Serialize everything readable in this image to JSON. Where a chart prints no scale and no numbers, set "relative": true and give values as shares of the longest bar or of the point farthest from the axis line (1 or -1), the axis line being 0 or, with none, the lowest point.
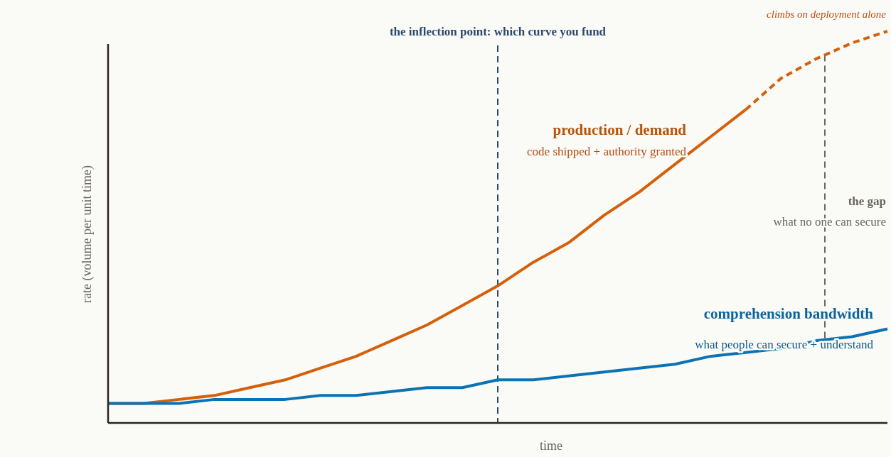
{
  "chart_data": {
    "type": "line",
    "relative": true,
    "xlabel": "time",
    "ylabel": "rate (volume per unit time)",
    "categories": [
      null,
      null,
      null,
      null,
      null,
      null,
      null,
      null,
      null,
      null,
      null,
      null,
      null,
      null,
      null,
      null,
      null,
      null,
      null,
      null,
      null,
      null,
      null
    ],
    "marker": "none",
    "series": [
      {
        "name": "production / demand",
        "color": "#d4600c",
        "line_style": "solid",
        "values": [
          0.05,
          0.05,
          0.06,
          0.07,
          0.09,
          0.11,
          0.14,
          0.17,
          0.21,
          0.25,
          0.3,
          0.35,
          0.41,
          0.46,
          0.53,
          0.59,
          0.66,
          0.73,
          0.8,
          null,
          null,
          null,
          null
        ]
      },
      {
        "color": "#d4600c",
        "line_style": "dashed",
        "values": [
          null,
          null,
          null,
          null,
          null,
          null,
          null,
          null,
          null,
          null,
          null,
          null,
          null,
          null,
          null,
          null,
          null,
          null,
          0.8,
          0.88,
          0.93,
          0.97,
          1
        ]
      },
      {
        "name": "comprehension bandwidth",
        "color": "#0b72b4",
        "line_style": "solid",
        "values": [
          0.05,
          0.05,
          0.05,
          0.06,
          0.06,
          0.06,
          0.07,
          0.07,
          0.08,
          0.09,
          0.09,
          0.11,
          0.11,
          0.12,
          0.13,
          0.14,
          0.15,
          0.17,
          0.18,
          0.19,
          0.21,
          0.22,
          0.24
        ]
      }
    ],
    "annotations": [
      "the inflection point: which curve you fund",
      "code shipped + authority granted",
      "the gap",
      "what no one can secure",
      "what people can secure + understand",
      "climbs on deployment alone"
    ]
  }
}
